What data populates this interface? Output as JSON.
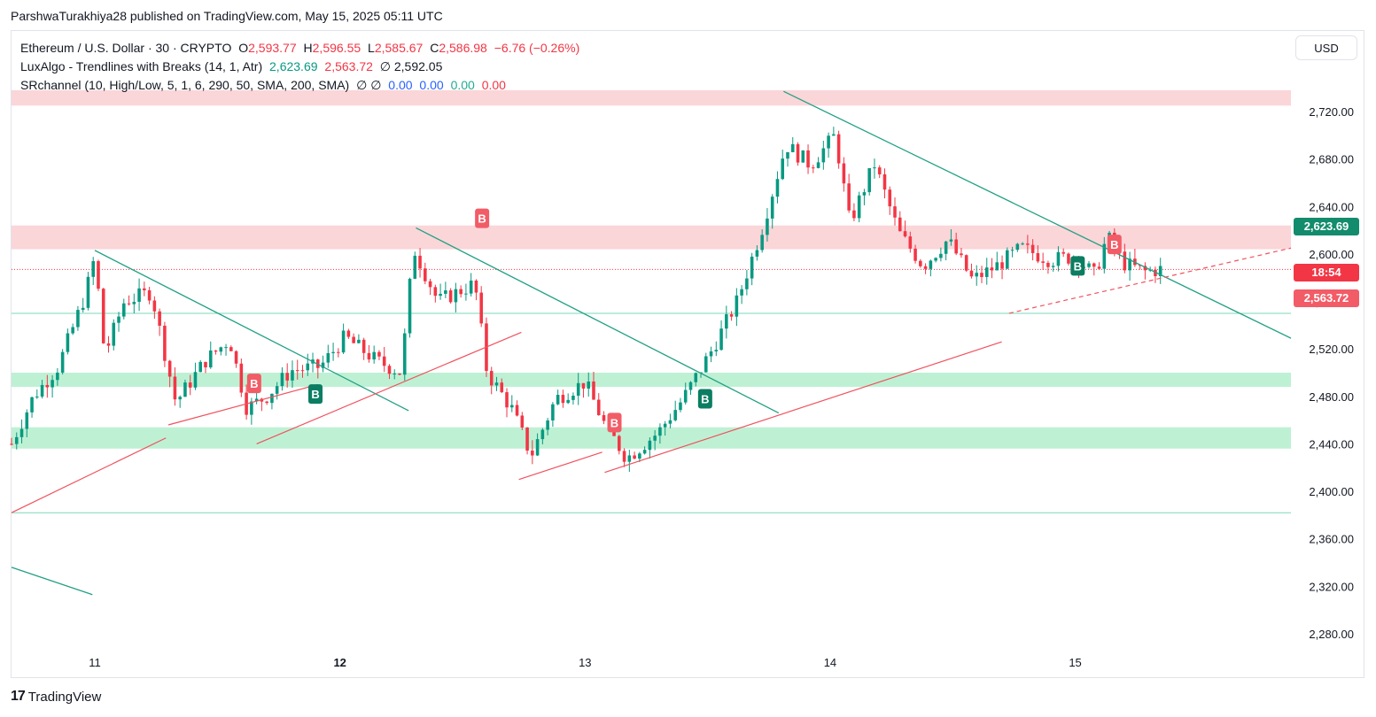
{
  "header": {
    "publisher": "ParshwaTurakhiya28 published on TradingView.com, May 15, 2025 05:11 UTC"
  },
  "legend": {
    "symbol": "Ethereum / U.S. Dollar · 30 · CRYPTO",
    "o_label": "O",
    "o": "2,593.77",
    "h_label": "H",
    "h": "2,596.55",
    "l_label": "L",
    "l": "2,585.67",
    "c_label": "C",
    "c": "2,586.98",
    "change": "−6.76 (−0.26%)",
    "indicator1": "LuxAlgo - Trendlines with Breaks (14, 1, Atr)",
    "ind1_v1": "2,623.69",
    "ind1_v2": "2,563.72",
    "ind1_v3": "∅ 2,592.05",
    "indicator2": "SRchannel (10, High/Low, 5, 1, 6, 290, 50, SMA, 200, SMA)",
    "ind2_v0": "∅ ∅",
    "ind2_v1": "0.00",
    "ind2_v2": "0.00",
    "ind2_v3": "0.00",
    "ind2_v4": "0.00"
  },
  "price_scale": {
    "currency": "USD",
    "tag_upper": "2,623.69",
    "tag_countdown": "18:54",
    "tag_lower": "2,563.72"
  },
  "footer": {
    "brand": "TradingView",
    "logo_text": "17"
  },
  "colors": {
    "up": "#089981",
    "down": "#f23645",
    "resistance_zone": "#f9cfd2",
    "support_zone": "#b7f0cf",
    "upper_tag": "#138b6d",
    "lower_tag": "#f25c67"
  },
  "chart_data": {
    "type": "candlestick",
    "title": "Ethereum / U.S. Dollar · 30 · CRYPTO",
    "ylim": [
      2250,
      2765
    ],
    "yticks": [
      2280,
      2320,
      2360,
      2400,
      2440,
      2480,
      2520,
      2560,
      2600,
      2640,
      2680,
      2720
    ],
    "ytick_labels": [
      "2,280.00",
      "2,320.00",
      "2,360.00",
      "2,400.00",
      "2,440.00",
      "2,480.00",
      "2,520.00",
      "2,560.00",
      "2,600.00",
      "2,640.00",
      "2,680.00",
      "2,720.00"
    ],
    "xticks": [
      {
        "label": "11",
        "day": 11
      },
      {
        "label": "12",
        "day": 12
      },
      {
        "label": "13",
        "day": 13
      },
      {
        "label": "14",
        "day": 14
      },
      {
        "label": "15",
        "day": 15
      }
    ],
    "xlim_days": [
      10.66,
      15.88
    ],
    "close_keypoints": [
      [
        10.66,
        2440
      ],
      [
        10.75,
        2480
      ],
      [
        10.85,
        2505
      ],
      [
        10.96,
        2565
      ],
      [
        11.0,
        2598
      ],
      [
        11.04,
        2515
      ],
      [
        11.12,
        2560
      ],
      [
        11.23,
        2568
      ],
      [
        11.33,
        2475
      ],
      [
        11.45,
        2510
      ],
      [
        11.55,
        2528
      ],
      [
        11.62,
        2470
      ],
      [
        11.7,
        2480
      ],
      [
        11.8,
        2502
      ],
      [
        11.92,
        2505
      ],
      [
        12.02,
        2530
      ],
      [
        12.15,
        2510
      ],
      [
        12.25,
        2500
      ],
      [
        12.3,
        2605
      ],
      [
        12.4,
        2560
      ],
      [
        12.55,
        2575
      ],
      [
        12.6,
        2500
      ],
      [
        12.7,
        2470
      ],
      [
        12.78,
        2430
      ],
      [
        12.88,
        2478
      ],
      [
        13.0,
        2492
      ],
      [
        13.08,
        2456
      ],
      [
        13.17,
        2428
      ],
      [
        13.3,
        2450
      ],
      [
        13.4,
        2478
      ],
      [
        13.52,
        2520
      ],
      [
        13.62,
        2560
      ],
      [
        13.72,
        2620
      ],
      [
        13.82,
        2692
      ],
      [
        13.92,
        2675
      ],
      [
        14.02,
        2700
      ],
      [
        14.08,
        2626
      ],
      [
        14.18,
        2676
      ],
      [
        14.28,
        2618
      ],
      [
        14.38,
        2590
      ],
      [
        14.48,
        2612
      ],
      [
        14.58,
        2578
      ],
      [
        14.68,
        2590
      ],
      [
        14.78,
        2605
      ],
      [
        14.9,
        2595
      ],
      [
        15.0,
        2598
      ],
      [
        15.08,
        2582
      ],
      [
        15.13,
        2615
      ],
      [
        15.2,
        2592
      ],
      [
        15.28,
        2585
      ],
      [
        15.35,
        2587
      ]
    ],
    "resistance_zones": [
      [
        2725,
        2738
      ],
      [
        2604,
        2624
      ]
    ],
    "support_zones": [
      [
        2488,
        2500
      ],
      [
        2436,
        2454
      ]
    ],
    "hlines": [
      2586.98,
      2550,
      2382
    ],
    "trendlines_down": [
      {
        "from": [
          11.0,
          2603
        ],
        "to": [
          12.28,
          2468
        ]
      },
      {
        "from": [
          12.31,
          2622
        ],
        "to": [
          13.79,
          2466
        ]
      },
      {
        "from": [
          13.81,
          2737
        ],
        "to": [
          15.88,
          2529
        ]
      },
      {
        "from": [
          10.66,
          2336
        ],
        "to": [
          10.99,
          2313
        ]
      }
    ],
    "trendlines_up": [
      {
        "from": [
          10.66,
          2382
        ],
        "to": [
          11.29,
          2445
        ]
      },
      {
        "from": [
          11.3,
          2456
        ],
        "to": [
          11.91,
          2490
        ]
      },
      {
        "from": [
          11.66,
          2440
        ],
        "to": [
          12.74,
          2534
        ]
      },
      {
        "from": [
          12.73,
          2410
        ],
        "to": [
          13.07,
          2433
        ]
      },
      {
        "from": [
          13.08,
          2416
        ],
        "to": [
          14.7,
          2526
        ]
      },
      {
        "from": [
          14.73,
          2550
        ],
        "to": [
          15.88,
          2605
        ]
      }
    ],
    "breakout_labels": [
      {
        "day": 11.65,
        "price": 2491,
        "text": "B",
        "kind": "bear"
      },
      {
        "day": 11.9,
        "price": 2482,
        "text": "B",
        "kind": "bull"
      },
      {
        "day": 12.58,
        "price": 2630,
        "text": "B",
        "kind": "bear"
      },
      {
        "day": 13.12,
        "price": 2458,
        "text": "B",
        "kind": "bear"
      },
      {
        "day": 13.49,
        "price": 2478,
        "text": "B",
        "kind": "bull"
      },
      {
        "day": 15.01,
        "price": 2590,
        "text": "B",
        "kind": "bull"
      },
      {
        "day": 15.16,
        "price": 2608,
        "text": "B",
        "kind": "bear"
      }
    ]
  }
}
